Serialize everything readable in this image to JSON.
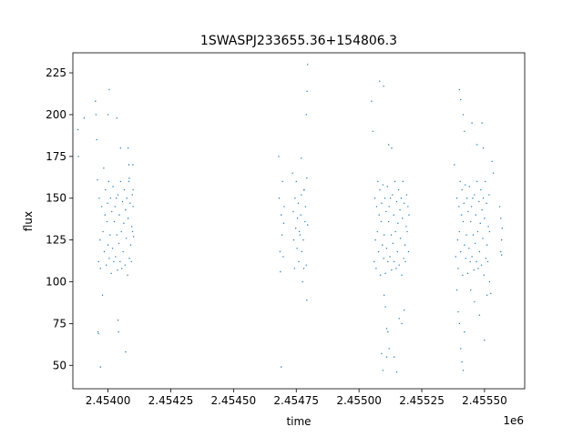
{
  "chart_data": {
    "type": "scatter",
    "title": "1SWASPJ233655.36+154806.3",
    "xlabel": "time",
    "ylabel": "flux",
    "x_offset_label": "1e6",
    "xlim": [
      2453860,
      2455660
    ],
    "ylim": [
      36,
      237
    ],
    "x_ticks": [
      2454000,
      2454250,
      2454500,
      2454750,
      2455000,
      2455250,
      2455500
    ],
    "x_tick_labels": [
      "2.45400",
      "2.45425",
      "2.45450",
      "2.45475",
      "2.45500",
      "2.45525",
      "2.45550"
    ],
    "y_ticks": [
      50,
      75,
      100,
      125,
      150,
      175,
      200,
      225
    ],
    "y_tick_labels": [
      "50",
      "75",
      "100",
      "125",
      "150",
      "175",
      "200",
      "225"
    ],
    "grid": false,
    "marker_color": "#1f77b4",
    "series": [
      {
        "points": [
          [
            2453880,
            191
          ],
          [
            2453882,
            175
          ],
          [
            2453905,
            198
          ],
          [
            2453950,
            208
          ],
          [
            2453952,
            200
          ],
          [
            2453955,
            185
          ],
          [
            2453958,
            161
          ],
          [
            2453963,
            112
          ],
          [
            2453965,
            150
          ],
          [
            2453968,
            125
          ],
          [
            2453970,
            108
          ],
          [
            2453975,
            145
          ],
          [
            2453978,
            92
          ],
          [
            2453980,
            130
          ],
          [
            2453983,
            168
          ],
          [
            2453985,
            118
          ],
          [
            2453988,
            140
          ],
          [
            2453990,
            155
          ],
          [
            2453993,
            110
          ],
          [
            2453996,
            136
          ],
          [
            2453998,
            147
          ],
          [
            2454000,
            122
          ],
          [
            2454003,
            160
          ],
          [
            2454005,
            114
          ],
          [
            2454008,
            128
          ],
          [
            2454010,
            150
          ],
          [
            2454013,
            105
          ],
          [
            2454015,
            142
          ],
          [
            2454018,
            120
          ],
          [
            2454020,
            157
          ],
          [
            2454023,
            112
          ],
          [
            2454025,
            136
          ],
          [
            2454028,
            145
          ],
          [
            2454030,
            115
          ],
          [
            2454033,
            150
          ],
          [
            2454035,
            128
          ],
          [
            2454038,
            107
          ],
          [
            2454040,
            152
          ],
          [
            2454043,
            123
          ],
          [
            2454045,
            140
          ],
          [
            2454048,
            112
          ],
          [
            2454050,
            160
          ],
          [
            2454053,
            130
          ],
          [
            2454055,
            108
          ],
          [
            2454058,
            148
          ],
          [
            2454060,
            118
          ],
          [
            2454063,
            135
          ],
          [
            2454065,
            155
          ],
          [
            2454068,
            110
          ],
          [
            2454070,
            143
          ],
          [
            2454073,
            126
          ],
          [
            2454075,
            150
          ],
          [
            2454078,
            104
          ],
          [
            2454080,
            138
          ],
          [
            2454083,
            160
          ],
          [
            2454085,
            114
          ],
          [
            2454088,
            147
          ],
          [
            2454090,
            122
          ],
          [
            2454093,
            112
          ],
          [
            2454095,
            133
          ],
          [
            2454097,
            152
          ],
          [
            2453960,
            70
          ],
          [
            2453962,
            69
          ],
          [
            2454035,
            198
          ],
          [
            2454040,
            77
          ],
          [
            2454042,
            70
          ],
          [
            2454050,
            180
          ],
          [
            2454070,
            58
          ],
          [
            2453970,
            49
          ],
          [
            2454000,
            200
          ],
          [
            2454005,
            215
          ],
          [
            2454080,
            180
          ],
          [
            2454083,
            170
          ],
          [
            2454085,
            162
          ],
          [
            2454098,
            130
          ],
          [
            2454100,
            145
          ],
          [
            2454102,
            127
          ],
          [
            2454100,
            155
          ],
          [
            2454099,
            170
          ],
          [
            2454680,
            175
          ],
          [
            2454682,
            150
          ],
          [
            2454685,
            118
          ],
          [
            2454687,
            106
          ],
          [
            2454690,
            140
          ],
          [
            2454693,
            128
          ],
          [
            2454695,
            160
          ],
          [
            2454698,
            115
          ],
          [
            2454700,
            135
          ],
          [
            2454702,
            145
          ],
          [
            2454690,
            49
          ],
          [
            2454735,
            165
          ],
          [
            2454738,
            142
          ],
          [
            2454740,
            125
          ],
          [
            2454743,
            108
          ],
          [
            2454745,
            150
          ],
          [
            2454748,
            132
          ],
          [
            2454750,
            160
          ],
          [
            2454753,
            120
          ],
          [
            2454755,
            138
          ],
          [
            2454758,
            147
          ],
          [
            2454760,
            112
          ],
          [
            2454762,
            130
          ],
          [
            2454765,
            128
          ],
          [
            2454768,
            140
          ],
          [
            2454770,
            152
          ],
          [
            2454772,
            118
          ],
          [
            2454775,
            100
          ],
          [
            2454778,
            125
          ],
          [
            2454780,
            108
          ],
          [
            2454782,
            155
          ],
          [
            2454785,
            136
          ],
          [
            2454787,
            145
          ],
          [
            2454790,
            110
          ],
          [
            2454792,
            162
          ],
          [
            2454795,
            134
          ],
          [
            2454770,
            174
          ],
          [
            2454790,
            200
          ],
          [
            2454795,
            230
          ],
          [
            2454793,
            214
          ],
          [
            2454780,
            155
          ],
          [
            2454792,
            89
          ],
          [
            2455050,
            208
          ],
          [
            2455055,
            190
          ],
          [
            2455060,
            112
          ],
          [
            2455063,
            150
          ],
          [
            2455065,
            125
          ],
          [
            2455068,
            108
          ],
          [
            2455070,
            145
          ],
          [
            2455073,
            130
          ],
          [
            2455075,
            160
          ],
          [
            2455078,
            118
          ],
          [
            2455080,
            140
          ],
          [
            2455083,
            155
          ],
          [
            2455085,
            104
          ],
          [
            2455088,
            136
          ],
          [
            2455090,
            147
          ],
          [
            2455093,
            122
          ],
          [
            2455095,
            158
          ],
          [
            2455098,
            114
          ],
          [
            2455100,
            128
          ],
          [
            2455103,
            150
          ],
          [
            2455105,
            105
          ],
          [
            2455108,
            142
          ],
          [
            2455110,
            120
          ],
          [
            2455113,
            157
          ],
          [
            2455115,
            112
          ],
          [
            2455118,
            136
          ],
          [
            2455120,
            145
          ],
          [
            2455123,
            115
          ],
          [
            2455125,
            150
          ],
          [
            2455128,
            128
          ],
          [
            2455130,
            107
          ],
          [
            2455133,
            152
          ],
          [
            2455135,
            123
          ],
          [
            2455138,
            140
          ],
          [
            2455140,
            112
          ],
          [
            2455143,
            160
          ],
          [
            2455145,
            130
          ],
          [
            2455148,
            108
          ],
          [
            2455150,
            148
          ],
          [
            2455153,
            118
          ],
          [
            2455155,
            135
          ],
          [
            2455158,
            155
          ],
          [
            2455160,
            110
          ],
          [
            2455163,
            143
          ],
          [
            2455165,
            126
          ],
          [
            2455168,
            150
          ],
          [
            2455170,
            104
          ],
          [
            2455173,
            138
          ],
          [
            2455175,
            160
          ],
          [
            2455178,
            114
          ],
          [
            2455180,
            147
          ],
          [
            2455183,
            122
          ],
          [
            2455185,
            112
          ],
          [
            2455188,
            133
          ],
          [
            2455190,
            152
          ],
          [
            2455192,
            130
          ],
          [
            2455195,
            145
          ],
          [
            2455197,
            118
          ],
          [
            2455199,
            140
          ],
          [
            2455082,
            220
          ],
          [
            2455098,
            217
          ],
          [
            2455118,
            182
          ],
          [
            2455130,
            180
          ],
          [
            2455100,
            92
          ],
          [
            2455105,
            85
          ],
          [
            2455110,
            72
          ],
          [
            2455115,
            70
          ],
          [
            2455120,
            60
          ],
          [
            2455090,
            57
          ],
          [
            2455095,
            47
          ],
          [
            2455140,
            55
          ],
          [
            2455150,
            46
          ],
          [
            2455160,
            78
          ],
          [
            2455170,
            75
          ],
          [
            2455180,
            83
          ],
          [
            2455110,
            55
          ],
          [
            2455380,
            170
          ],
          [
            2455385,
            115
          ],
          [
            2455390,
            150
          ],
          [
            2455393,
            125
          ],
          [
            2455395,
            108
          ],
          [
            2455398,
            145
          ],
          [
            2455400,
            130
          ],
          [
            2455403,
            160
          ],
          [
            2455405,
            118
          ],
          [
            2455408,
            140
          ],
          [
            2455410,
            155
          ],
          [
            2455413,
            104
          ],
          [
            2455415,
            136
          ],
          [
            2455418,
            147
          ],
          [
            2455420,
            122
          ],
          [
            2455423,
            158
          ],
          [
            2455425,
            114
          ],
          [
            2455428,
            128
          ],
          [
            2455430,
            150
          ],
          [
            2455433,
            105
          ],
          [
            2455435,
            142
          ],
          [
            2455438,
            120
          ],
          [
            2455440,
            157
          ],
          [
            2455443,
            112
          ],
          [
            2455445,
            136
          ],
          [
            2455448,
            145
          ],
          [
            2455450,
            115
          ],
          [
            2455453,
            150
          ],
          [
            2455455,
            128
          ],
          [
            2455458,
            107
          ],
          [
            2455460,
            152
          ],
          [
            2455463,
            123
          ],
          [
            2455465,
            140
          ],
          [
            2455468,
            112
          ],
          [
            2455470,
            160
          ],
          [
            2455473,
            130
          ],
          [
            2455475,
            108
          ],
          [
            2455478,
            148
          ],
          [
            2455480,
            118
          ],
          [
            2455483,
            135
          ],
          [
            2455485,
            155
          ],
          [
            2455488,
            110
          ],
          [
            2455490,
            143
          ],
          [
            2455493,
            126
          ],
          [
            2455495,
            150
          ],
          [
            2455498,
            104
          ],
          [
            2455500,
            138
          ],
          [
            2455503,
            160
          ],
          [
            2455505,
            114
          ],
          [
            2455508,
            147
          ],
          [
            2455510,
            122
          ],
          [
            2455513,
            112
          ],
          [
            2455515,
            133
          ],
          [
            2455518,
            152
          ],
          [
            2455520,
            130
          ],
          [
            2455400,
            215
          ],
          [
            2455405,
            209
          ],
          [
            2455415,
            200
          ],
          [
            2455420,
            190
          ],
          [
            2455450,
            195
          ],
          [
            2455470,
            182
          ],
          [
            2455490,
            195
          ],
          [
            2455495,
            180
          ],
          [
            2455390,
            95
          ],
          [
            2455395,
            82
          ],
          [
            2455400,
            75
          ],
          [
            2455405,
            60
          ],
          [
            2455410,
            52
          ],
          [
            2455415,
            47
          ],
          [
            2455420,
            70
          ],
          [
            2455445,
            95
          ],
          [
            2455460,
            88
          ],
          [
            2455480,
            80
          ],
          [
            2455500,
            65
          ],
          [
            2455510,
            92
          ],
          [
            2455520,
            100
          ],
          [
            2455525,
            93
          ],
          [
            2455530,
            172
          ],
          [
            2455535,
            165
          ],
          [
            2455560,
            145
          ],
          [
            2455565,
            138
          ],
          [
            2455568,
            125
          ],
          [
            2455570,
            132
          ],
          [
            2455565,
            118
          ],
          [
            2455568,
            116
          ]
        ]
      }
    ]
  }
}
